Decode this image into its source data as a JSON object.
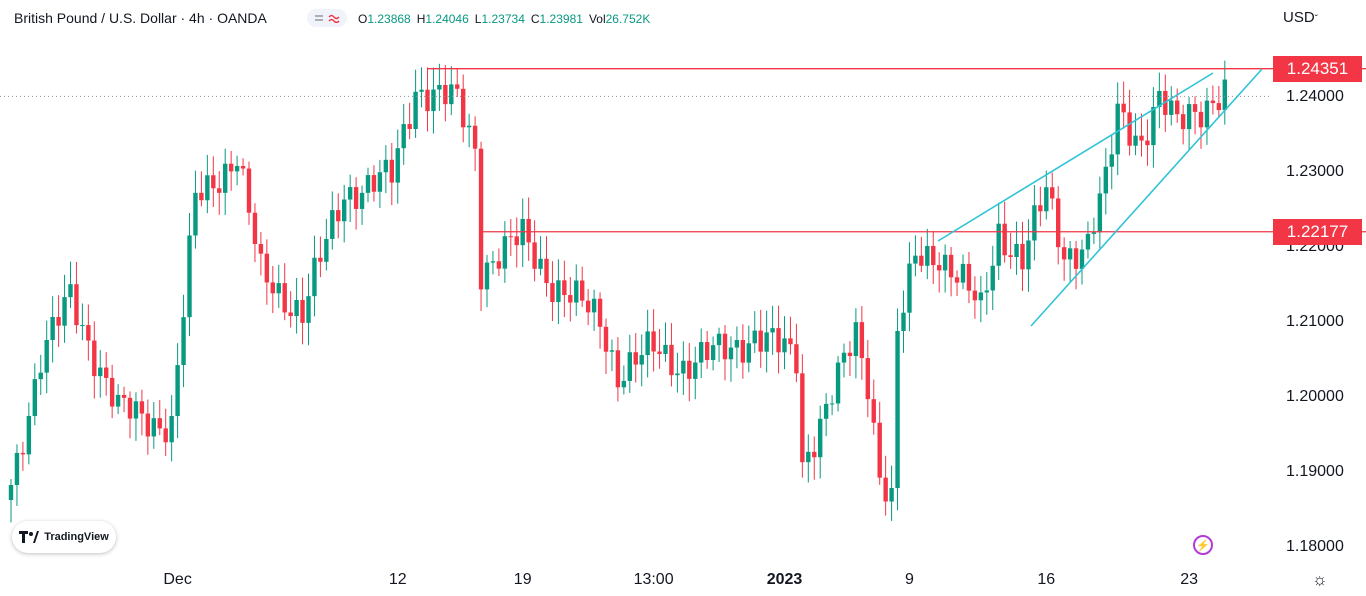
{
  "header": {
    "title": "British Pound / U.S. Dollar · 4h · OANDA",
    "ohlc": [
      {
        "k": "O",
        "v": "1.23868"
      },
      {
        "k": "H",
        "v": "1.24046"
      },
      {
        "k": "L",
        "v": "1.23734"
      },
      {
        "k": "C",
        "v": "1.23981"
      },
      {
        "k": "Vol",
        "v": "26.752K"
      }
    ],
    "currency": "USD"
  },
  "brand": "TradingView",
  "colors": {
    "up": "#089981",
    "down": "#f23645",
    "line": "#f23645",
    "channel": "#2ec4d6",
    "grid": "#ffffff"
  },
  "chart_data": {
    "type": "candlestick",
    "symbol": "GBPUSD",
    "timeframe": "4h",
    "ylim": [
      1.175,
      1.247
    ],
    "y_ticks": [
      1.18,
      1.19,
      1.2,
      1.21,
      1.22,
      1.23,
      1.24
    ],
    "y_tick_labels": [
      "1.18000",
      "1.19000",
      "1.20000",
      "1.21000",
      "1.22000",
      "1.23000",
      "1.24000"
    ],
    "x_tick_labels": [
      "Dec",
      "12",
      "19",
      "13:00",
      "2023",
      "9",
      "16",
      "23"
    ],
    "x_tick_index": [
      28,
      65,
      86,
      108,
      130,
      151,
      174,
      198
    ],
    "bar_count": 205,
    "horizontal_levels": [
      {
        "label": "1.24351",
        "value": 1.24351,
        "from_index": 70
      },
      {
        "label": "1.22177",
        "value": 1.22177,
        "from_index": 79
      }
    ],
    "last_price": 1.23981,
    "key_points": [
      [
        0,
        1.188
      ],
      [
        5,
        1.205
      ],
      [
        10,
        1.213
      ],
      [
        18,
        1.198
      ],
      [
        27,
        1.196
      ],
      [
        31,
        1.226
      ],
      [
        38,
        1.232
      ],
      [
        42,
        1.216
      ],
      [
        49,
        1.211
      ],
      [
        56,
        1.227
      ],
      [
        64,
        1.229
      ],
      [
        68,
        1.241
      ],
      [
        75,
        1.239
      ],
      [
        78,
        1.233
      ],
      [
        79,
        1.217
      ],
      [
        86,
        1.221
      ],
      [
        91,
        1.215
      ],
      [
        99,
        1.21
      ],
      [
        102,
        1.203
      ],
      [
        108,
        1.206
      ],
      [
        113,
        1.204
      ],
      [
        120,
        1.206
      ],
      [
        125,
        1.208
      ],
      [
        132,
        1.205
      ],
      [
        133,
        1.191
      ],
      [
        138,
        1.2
      ],
      [
        142,
        1.208
      ],
      [
        144,
        1.202
      ],
      [
        146,
        1.19
      ],
      [
        148,
        1.186
      ],
      [
        149,
        1.208
      ],
      [
        152,
        1.218
      ],
      [
        156,
        1.219
      ],
      [
        160,
        1.215
      ],
      [
        163,
        1.211
      ],
      [
        166,
        1.222
      ],
      [
        170,
        1.218
      ],
      [
        174,
        1.227
      ],
      [
        177,
        1.219
      ],
      [
        181,
        1.22
      ],
      [
        184,
        1.228
      ],
      [
        186,
        1.238
      ],
      [
        190,
        1.234
      ],
      [
        193,
        1.239
      ],
      [
        196,
        1.236
      ],
      [
        198,
        1.238
      ],
      [
        204,
        1.2398
      ]
    ]
  }
}
